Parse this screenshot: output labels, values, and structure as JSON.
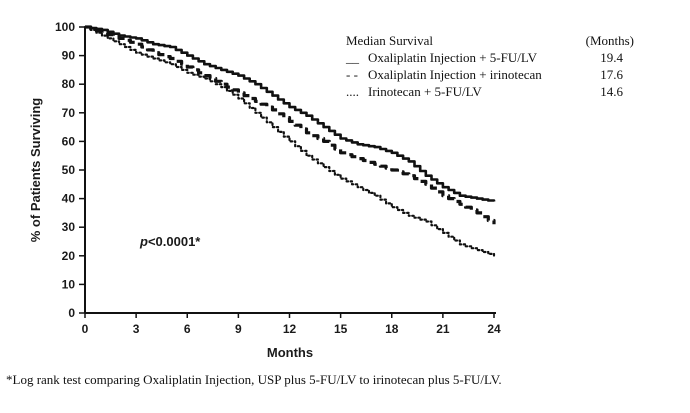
{
  "chart_data": {
    "type": "line",
    "title": "",
    "xlabel": "Months",
    "ylabel": "% of Patients Surviving",
    "xlim": [
      0,
      24
    ],
    "ylim": [
      0,
      100
    ],
    "x_ticks": [
      "0",
      "3",
      "6",
      "9",
      "12",
      "15",
      "18",
      "21",
      "24"
    ],
    "y_ticks": [
      "0",
      "10",
      "20",
      "30",
      "40",
      "50",
      "60",
      "70",
      "80",
      "90",
      "100"
    ],
    "grid": false,
    "legend": {
      "position": "top-right",
      "header": "Median Survival",
      "header_unit": "(Months)"
    },
    "series": [
      {
        "name": "Oxaliplatin Injection + 5-FU/LV",
        "legend_marker": "__",
        "median_label": "19.4",
        "style": "solid",
        "points": [
          [
            0,
            100
          ],
          [
            1,
            99
          ],
          [
            2,
            97
          ],
          [
            3,
            96
          ],
          [
            4,
            94
          ],
          [
            5,
            93
          ],
          [
            6,
            90
          ],
          [
            7,
            87
          ],
          [
            8,
            85
          ],
          [
            9,
            83
          ],
          [
            10,
            80
          ],
          [
            11,
            76
          ],
          [
            12,
            72
          ],
          [
            13,
            69
          ],
          [
            14,
            65
          ],
          [
            15,
            61
          ],
          [
            16,
            59
          ],
          [
            17,
            58
          ],
          [
            18,
            56
          ],
          [
            19,
            53
          ],
          [
            20,
            48
          ],
          [
            21,
            44
          ],
          [
            22,
            41
          ],
          [
            23,
            40
          ],
          [
            24,
            39
          ]
        ]
      },
      {
        "name": "Oxaliplatin Injection + irinotecan",
        "legend_marker": "- -",
        "median_label": "17.6",
        "style": "dashed",
        "points": [
          [
            0,
            100
          ],
          [
            1,
            98
          ],
          [
            2,
            96
          ],
          [
            3,
            94
          ],
          [
            4,
            91
          ],
          [
            5,
            89
          ],
          [
            6,
            86
          ],
          [
            7,
            83
          ],
          [
            8,
            80
          ],
          [
            9,
            77
          ],
          [
            10,
            74
          ],
          [
            11,
            71
          ],
          [
            12,
            67
          ],
          [
            13,
            63
          ],
          [
            14,
            60
          ],
          [
            15,
            56
          ],
          [
            16,
            54
          ],
          [
            17,
            52
          ],
          [
            18,
            50
          ],
          [
            19,
            48
          ],
          [
            20,
            45
          ],
          [
            21,
            41
          ],
          [
            22,
            38
          ],
          [
            23,
            35
          ],
          [
            24,
            31
          ]
        ]
      },
      {
        "name": "Irinotecan + 5-FU/LV",
        "legend_marker": "....",
        "median_label": "14.6",
        "style": "dotted",
        "points": [
          [
            0,
            100
          ],
          [
            1,
            97
          ],
          [
            2,
            94
          ],
          [
            3,
            91
          ],
          [
            4,
            89
          ],
          [
            5,
            87
          ],
          [
            6,
            84
          ],
          [
            7,
            82
          ],
          [
            8,
            79
          ],
          [
            9,
            75
          ],
          [
            10,
            70
          ],
          [
            11,
            65
          ],
          [
            12,
            60
          ],
          [
            13,
            55
          ],
          [
            14,
            51
          ],
          [
            15,
            47
          ],
          [
            16,
            44
          ],
          [
            17,
            41
          ],
          [
            18,
            37
          ],
          [
            19,
            34
          ],
          [
            20,
            32
          ],
          [
            21,
            28
          ],
          [
            22,
            24
          ],
          [
            23,
            22
          ],
          [
            24,
            20
          ]
        ]
      }
    ],
    "annotation": "p<0.0001*"
  },
  "footnote": "*Log rank test comparing Oxaliplatin Injection, USP plus 5-FU/LV to irinotecan plus 5-FU/LV."
}
